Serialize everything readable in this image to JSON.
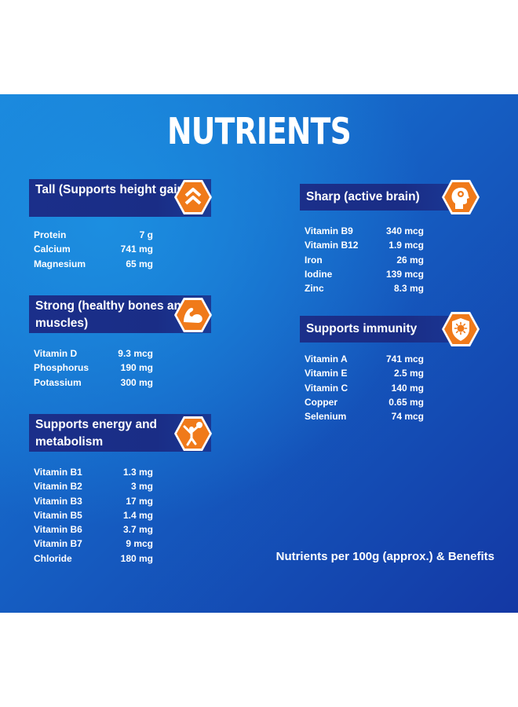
{
  "title": "NUTRIENTS",
  "cards": [
    {
      "heading": "Tall (Supports height gain)",
      "icon": "chevron-up-icon",
      "rows": [
        {
          "name": "Protein",
          "value": "7 g"
        },
        {
          "name": "Calcium",
          "value": "741 mg"
        },
        {
          "name": "Magnesium",
          "value": "65 mg"
        }
      ]
    },
    {
      "heading": "Strong (healthy bones and muscles)",
      "icon": "flexed-arm-icon",
      "rows": [
        {
          "name": "Vitamin D",
          "value": "9.3 mcg"
        },
        {
          "name": "Phosphorus",
          "value": "190 mg"
        },
        {
          "name": "Potassium",
          "value": "300 mg"
        }
      ]
    },
    {
      "heading": "Supports energy and metabolism",
      "icon": "person-ball-icon",
      "rows": [
        {
          "name": "Vitamin B1",
          "value": "1.3 mg"
        },
        {
          "name": "Vitamin B2",
          "value": "3 mg"
        },
        {
          "name": "Vitamin B3",
          "value": "17 mg"
        },
        {
          "name": "Vitamin B5",
          "value": "1.4 mg"
        },
        {
          "name": "Vitamin B6",
          "value": "3.7 mg"
        },
        {
          "name": "Vitamin B7",
          "value": "9 mcg"
        },
        {
          "name": "Chloride",
          "value": "180 mg"
        }
      ]
    },
    {
      "heading": "Sharp (active brain)",
      "icon": "brain-head-icon",
      "rows": [
        {
          "name": "Vitamin B9",
          "value": "340 mcg"
        },
        {
          "name": "Vitamin B12",
          "value": "1.9 mcg"
        },
        {
          "name": "Iron",
          "value": "26 mg"
        },
        {
          "name": "Iodine",
          "value": "139 mcg"
        },
        {
          "name": "Zinc",
          "value": "8.3 mg"
        }
      ]
    },
    {
      "heading": "Supports immunity",
      "icon": "shield-icon",
      "rows": [
        {
          "name": "Vitamin A",
          "value": "741 mcg"
        },
        {
          "name": "Vitamin E",
          "value": "2.5 mg"
        },
        {
          "name": "Vitamin C",
          "value": "140 mg"
        },
        {
          "name": "Copper",
          "value": "0.65 mg"
        },
        {
          "name": "Selenium",
          "value": "74 mcg"
        }
      ]
    }
  ],
  "footer": "Nutrients per 100g (approx.) & Benefits",
  "colors": {
    "accent": "#f07a1a",
    "heading_bg": "#1b2f8a",
    "panel": "#1560c4"
  }
}
